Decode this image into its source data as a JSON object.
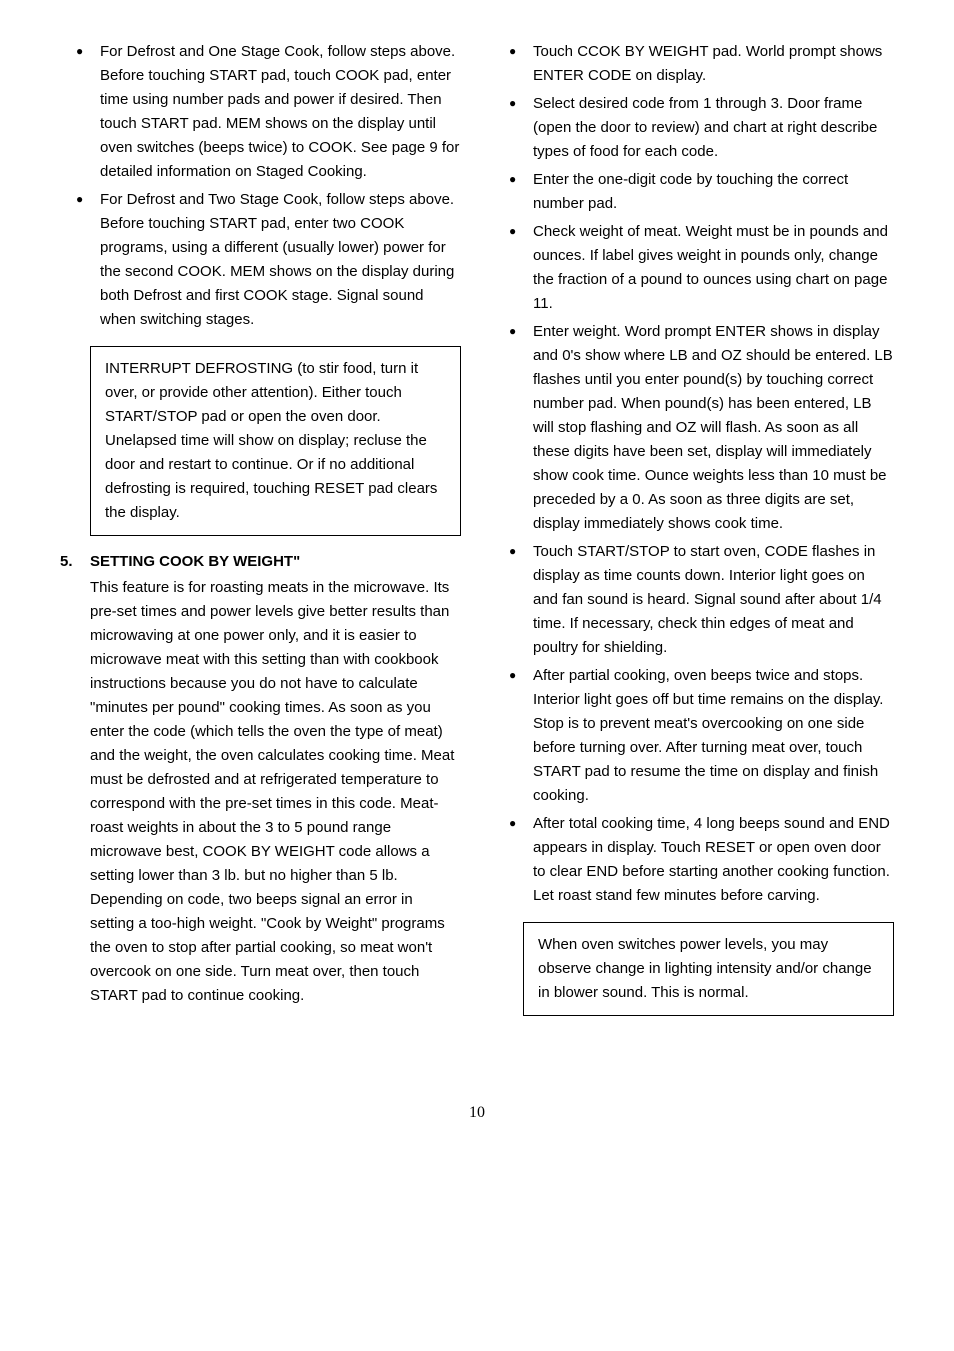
{
  "fonts": {
    "body_family": "Arial",
    "body_size_pt": 11,
    "line_height": 1.6
  },
  "colors": {
    "text": "#000000",
    "background": "#ffffff",
    "border": "#000000"
  },
  "page_number": "10",
  "left": {
    "bullets": [
      "For Defrost and One Stage Cook, follow steps above. Before touching START pad, touch COOK pad, enter time using number pads and power if desired. Then touch START pad. MEM shows on the display until oven switches (beeps twice) to COOK. See page 9 for detailed information on Staged Cooking.",
      "For Defrost and Two Stage Cook, follow steps above. Before touching START pad, enter two COOK programs, using a different (usually lower) power for the second COOK. MEM shows on the display during both Defrost and first COOK stage. Signal sound when switching stages."
    ],
    "box": "INTERRUPT DEFROSTING (to stir food, turn it over, or provide other attention). Either touch START/STOP pad or open the oven door. Unelapsed time will show on display; recluse the door and restart to continue. Or if no additional defrosting is required, touching RESET pad clears the display.",
    "section": {
      "num": "5.",
      "heading": "SETTING COOK BY WEIGHT\"",
      "body": "This feature is for roasting meats in the microwave. Its pre-set times and power levels give better results than microwaving at one power only, and it is easier to microwave meat with this setting than with cookbook instructions because you do not have to calculate \"minutes per pound\" cooking times. As soon as you enter the code (which tells the oven the type of meat) and the weight, the oven calculates cooking time. Meat must be defrosted and at refrigerated temperature to correspond with the pre-set times in this code. Meat-roast weights in about the 3 to 5 pound range microwave best, COOK BY WEIGHT code allows a setting lower than 3 lb. but no higher than 5 lb. Depending on code, two beeps signal an error in setting a too-high weight. \"Cook by Weight\" programs the oven to stop after partial cooking, so meat won't overcook on one side. Turn meat over, then touch START pad to continue cooking."
    }
  },
  "right": {
    "bullets": [
      "Touch CCOK BY WEIGHT pad. World prompt shows ENTER CODE on display.",
      "Select desired code from 1 through 3. Door frame (open the door to review) and chart at right describe types of food for each code.",
      "Enter the one-digit code by touching the correct number pad.",
      "Check weight of meat. Weight must be in pounds and ounces. If label gives weight in pounds only, change the fraction of a pound to ounces using chart on page 11.",
      "Enter weight. Word prompt ENTER shows in display and 0's show where LB and OZ should be entered. LB flashes until you enter pound(s) by touching correct number pad. When pound(s) has been entered, LB will stop flashing and OZ will flash. As soon as all these digits have been set, display will immediately show cook time. Ounce weights less than 10 must be preceded by a 0. As soon as three digits are set, display immediately shows cook time.",
      "Touch START/STOP to start oven, CODE flashes in display as time counts down. Interior light goes on and fan sound is heard. Signal sound after about 1/4 time. If necessary, check thin edges of meat and poultry for shielding.",
      "After partial cooking, oven beeps twice and stops. Interior light goes off but time remains on the display. Stop is to prevent meat's overcooking on one side before turning over. After turning meat over, touch START pad to resume the time on display and finish cooking.",
      "After total cooking time, 4 long beeps sound and END appears in display. Touch RESET or open oven door to clear END before starting another cooking function. Let roast stand few minutes before carving."
    ],
    "box": "When oven switches power levels, you may observe change in lighting intensity and/or change in blower sound. This is normal."
  }
}
